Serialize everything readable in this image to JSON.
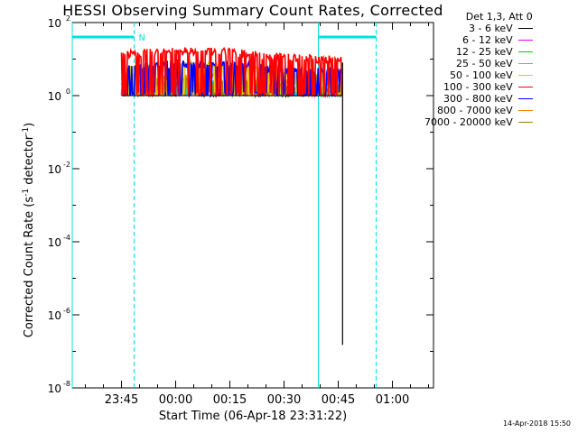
{
  "chart_data": {
    "type": "line",
    "title": "HESSI Observing Summary Count Rates, Corrected",
    "xlabel": "Start Time (06-Apr-18 23:31:22)",
    "ylabel_main": "Corrected Count Rate (s",
    "ylabel_sup1": "-1",
    "ylabel_mid": " detector",
    "ylabel_sup2": "-1",
    "ylabel_end": ")",
    "x_ticks": [
      "23:45",
      "00:00",
      "00:15",
      "00:30",
      "00:45",
      "01:00"
    ],
    "x_tick_minutes": [
      45,
      60,
      75,
      90,
      105,
      120
    ],
    "xlim_minutes": [
      31.37,
      131.37
    ],
    "y_scale": "log",
    "ylim": [
      1e-08,
      100
    ],
    "y_ticks": [
      {
        "base": "10",
        "exp": "2",
        "value": 100
      },
      {
        "base": "10",
        "exp": "0",
        "value": 1
      },
      {
        "base": "10",
        "exp": "-2",
        "value": 0.01
      },
      {
        "base": "10",
        "exp": "-4",
        "value": 0.0001
      },
      {
        "base": "10",
        "exp": "-6",
        "value": 1e-06
      },
      {
        "base": "10",
        "exp": "-8",
        "value": 1e-08
      }
    ],
    "legend_header": "Det 1,3, Att 0",
    "legend_placement": "right",
    "series": [
      {
        "name": "3 - 6 keV",
        "color": "#000000",
        "level": 1.4
      },
      {
        "name": "6 - 12 keV",
        "color": "#e000e0",
        "level": 1.3
      },
      {
        "name": "12 - 25 keV",
        "color": "#00d000",
        "level": 1.6
      },
      {
        "name": "25 - 50 keV",
        "color": "#00e0e0",
        "level": 1.7
      },
      {
        "name": "50 - 100 keV",
        "color": "#e0d000",
        "level": 5.0
      },
      {
        "name": "100 - 300 keV",
        "color": "#ff0000",
        "level": 12
      },
      {
        "name": "300 - 800 keV",
        "color": "#0000ff",
        "level": 5.5
      },
      {
        "name": "800 - 7000 keV",
        "color": "#ff8000",
        "level": 2.5
      },
      {
        "name": "7000 - 20000 keV",
        "color": "#a08000",
        "level": 1.8
      }
    ],
    "data_interval_minutes": [
      45,
      106
    ],
    "night_markers_minutes": [
      48.5,
      99.5,
      115.5
    ],
    "night_label": "N",
    "cutoff_drop": {
      "x_minutes": 106.2,
      "y_min": 1.5e-07
    }
  },
  "timestamp": "14-Apr-2018 15:50"
}
